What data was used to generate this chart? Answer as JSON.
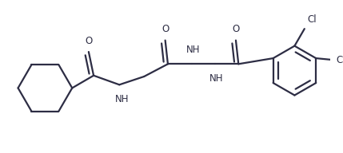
{
  "bg_color": "#FFFFFF",
  "line_color": "#2d2d44",
  "line_width": 1.6,
  "font_size": 8.5,
  "figsize": [
    4.29,
    1.92
  ],
  "dpi": 100,
  "xlim": [
    0,
    10
  ],
  "ylim": [
    0,
    4.5
  ]
}
